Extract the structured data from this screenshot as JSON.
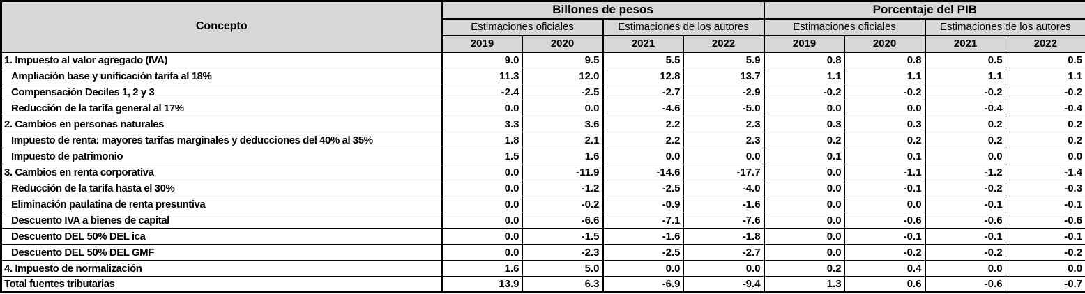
{
  "table": {
    "concepto_header": "Concepto",
    "groups": [
      {
        "label": "Billones de pesos"
      },
      {
        "label": "Porcentaje del PIB"
      }
    ],
    "subgroups": [
      "Estimaciones oficiales",
      "Estimaciones de los autores",
      "Estimaciones oficiales",
      "Estimaciones de los autores"
    ],
    "years": [
      "2019",
      "2020",
      "2021",
      "2022",
      "2019",
      "2020",
      "2021",
      "2022"
    ],
    "rows": [
      {
        "label": "1. Impuesto al valor agregado (IVA)",
        "level": "section",
        "values": [
          "9.0",
          "9.5",
          "5.5",
          "5.9",
          "0.8",
          "0.8",
          "0.5",
          "0.5"
        ]
      },
      {
        "label": "Ampliación base y unificación tarifa al 18%",
        "level": "sub",
        "values": [
          "11.3",
          "12.0",
          "12.8",
          "13.7",
          "1.1",
          "1.1",
          "1.1",
          "1.1"
        ]
      },
      {
        "label": "Compensación Deciles 1, 2 y 3",
        "level": "sub",
        "values": [
          "-2.4",
          "-2.5",
          "-2.7",
          "-2.9",
          "-0.2",
          "-0.2",
          "-0.2",
          "-0.2"
        ]
      },
      {
        "label": "Reducción de la tarifa general al 17%",
        "level": "sub",
        "values": [
          "0.0",
          "0.0",
          "-4.6",
          "-5.0",
          "0.0",
          "0.0",
          "-0.4",
          "-0.4"
        ]
      },
      {
        "label": "2. Cambios en personas naturales",
        "level": "section",
        "values": [
          "3.3",
          "3.6",
          "2.2",
          "2.3",
          "0.3",
          "0.3",
          "0.2",
          "0.2"
        ]
      },
      {
        "label": "Impuesto de renta: mayores tarifas marginales y deducciones del 40% al 35%",
        "level": "sub",
        "values": [
          "1.8",
          "2.1",
          "2.2",
          "2.3",
          "0.2",
          "0.2",
          "0.2",
          "0.2"
        ]
      },
      {
        "label": "Impuesto de patrimonio",
        "level": "sub",
        "values": [
          "1.5",
          "1.6",
          "0.0",
          "0.0",
          "0.1",
          "0.1",
          "0.0",
          "0.0"
        ]
      },
      {
        "label": "3. Cambios en renta corporativa",
        "level": "section",
        "values": [
          "0.0",
          "-11.9",
          "-14.6",
          "-17.7",
          "0.0",
          "-1.1",
          "-1.2",
          "-1.4"
        ]
      },
      {
        "label": "Reducción de la tarifa hasta el 30%",
        "level": "sub",
        "values": [
          "0.0",
          "-1.2",
          "-2.5",
          "-4.0",
          "0.0",
          "-0.1",
          "-0.2",
          "-0.3"
        ]
      },
      {
        "label": "Eliminación paulatina de renta presuntiva",
        "level": "sub",
        "values": [
          "0.0",
          "-0.2",
          "-0.9",
          "-1.6",
          "0.0",
          "0.0",
          "-0.1",
          "-0.1"
        ]
      },
      {
        "label": "Descuento IVA a bienes de capital",
        "level": "sub",
        "values": [
          "0.0",
          "-6.6",
          "-7.1",
          "-7.6",
          "0.0",
          "-0.6",
          "-0.6",
          "-0.6"
        ]
      },
      {
        "label": "Descuento DEL 50% DEL ica",
        "level": "sub",
        "values": [
          "0.0",
          "-1.5",
          "-1.6",
          "-1.8",
          "0.0",
          "-0.1",
          "-0.1",
          "-0.1"
        ]
      },
      {
        "label": "Descuento DEL 50% DEL GMF",
        "level": "sub",
        "values": [
          "0.0",
          "-2.3",
          "-2.5",
          "-2.7",
          "0.0",
          "-0.2",
          "-0.2",
          "-0.2"
        ]
      },
      {
        "label": "4. Impuesto de normalización",
        "level": "section",
        "values": [
          "1.6",
          "5.0",
          "0.0",
          "0.0",
          "0.2",
          "0.4",
          "0.0",
          "0.0"
        ]
      },
      {
        "label": "Total fuentes tributarias",
        "level": "total",
        "values": [
          "13.9",
          "6.3",
          "-6.9",
          "-9.4",
          "1.3",
          "0.6",
          "-0.6",
          "-0.7"
        ]
      }
    ],
    "colors": {
      "header_bg": "#d7d7d7",
      "border": "#000000"
    }
  }
}
